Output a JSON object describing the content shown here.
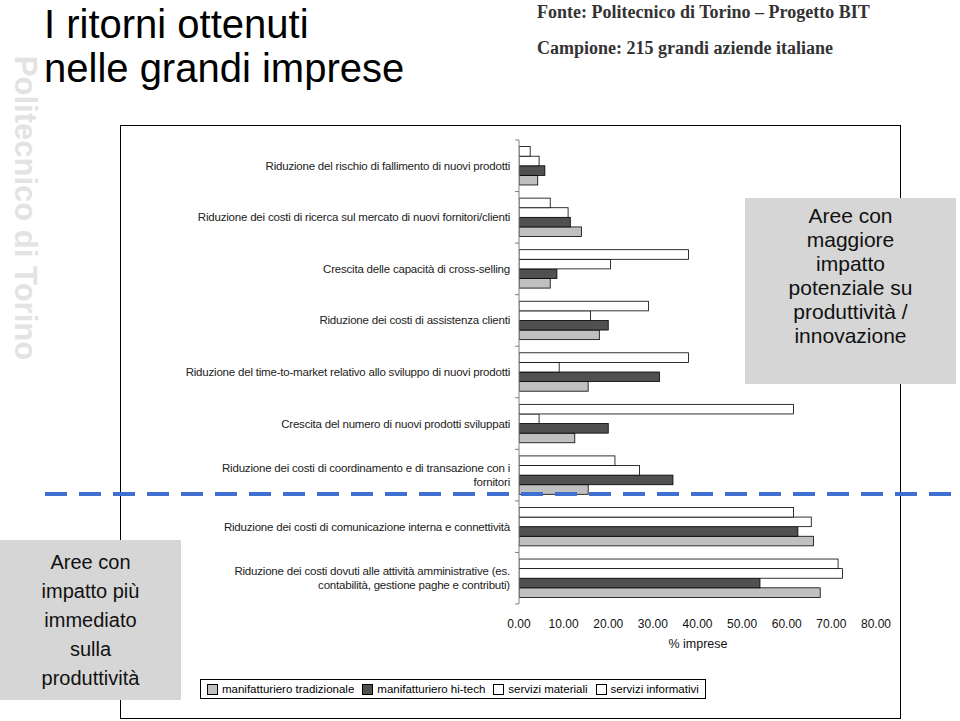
{
  "chart_data": {
    "type": "bar",
    "orientation": "horizontal",
    "title": "I ritorni ottenuti\nnelle grandi imprese",
    "annotations": [
      "Fonte: Politecnico di Torino – Progetto BIT",
      "Campione: 215 grandi aziende italiane",
      "Politecnico di Torino",
      "Aree con\nmaggiore\nimpatto\npotenziale su\nproduttività /\ninnovazione",
      "Aree con\nimpatto più\nimmediato\nsulla\nproduttività"
    ],
    "xlabel": "% imprese",
    "categories": [
      "Riduzione del rischio di fallimento di nuovi prodotti",
      "Riduzione dei costi di ricerca sul mercato di nuovi fornitori/clienti",
      "Crescita delle capacità di cross-selling",
      "Riduzione dei costi di assistenza clienti",
      "Riduzione del time-to-market relativo allo sviluppo di nuovi prodotti",
      "Crescita del numero di nuovi prodotti sviluppati",
      "Riduzione dei costi di coordinamento e di transazione con i\nfornitori",
      "Riduzione dei costi di comunicazione interna e connettività",
      "Riduzione dei costi dovuti alle attività amministrative (es.\ncontabilità, gestione paghe e contributi)"
    ],
    "series": [
      {
        "name": "manifatturiero tradizionale",
        "color": "#c0c0c0",
        "values": [
          4.2,
          14,
          7,
          18,
          15.5,
          12.5,
          15.5,
          66,
          67.5
        ]
      },
      {
        "name": "manifatturiero hi-tech",
        "color": "#505050",
        "values": [
          5.8,
          11.5,
          8.5,
          20,
          31.5,
          20,
          34.5,
          62.5,
          54
        ]
      },
      {
        "name": "servizi materiali",
        "color": "#ffffff",
        "values": [
          4.5,
          11,
          20.5,
          16,
          9,
          4.5,
          27,
          65.5,
          72.5
        ]
      },
      {
        "name": "servizi informativi",
        "color": "#ffffff",
        "values": [
          2.5,
          7,
          38,
          29,
          38,
          61.5,
          21.5,
          61.5,
          71.5
        ]
      }
    ],
    "xlim": [
      0,
      80
    ],
    "xticks": [
      {
        "value": 0,
        "label": "0.00"
      },
      {
        "value": 10,
        "label": "10.00"
      },
      {
        "value": 20,
        "label": "20.00"
      },
      {
        "value": 30,
        "label": "30.00"
      },
      {
        "value": 40,
        "label": "40.00"
      },
      {
        "value": 50,
        "label": "50.00"
      },
      {
        "value": 60,
        "label": "60.00"
      },
      {
        "value": 70,
        "label": "70.00"
      },
      {
        "value": 80,
        "label": "80.00"
      }
    ],
    "grid": false,
    "legend": "bottom"
  }
}
